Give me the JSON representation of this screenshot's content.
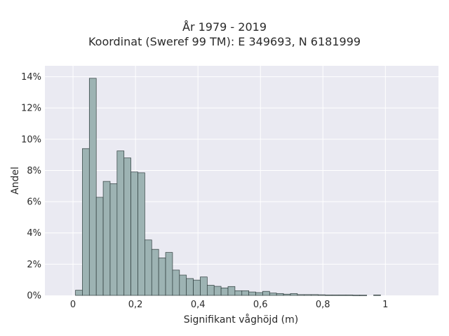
{
  "chart_data": {
    "type": "bar",
    "title": "År 1979 - 2019",
    "subtitle": "Koordinat (Sweref 99 TM): E 349693, N 6181999",
    "xlabel": "Signifikant våghöjd (m)",
    "ylabel": "Andel",
    "xlim": [
      -0.09,
      1.17
    ],
    "ylim": [
      0,
      14.7
    ],
    "x_ticks": [
      {
        "value": 0,
        "label": "0"
      },
      {
        "value": 0.2,
        "label": "0,2"
      },
      {
        "value": 0.4,
        "label": "0,4"
      },
      {
        "value": 0.6,
        "label": "0,6"
      },
      {
        "value": 0.8,
        "label": "0,8"
      },
      {
        "value": 1,
        "label": "1"
      }
    ],
    "y_ticks": [
      {
        "value": 0,
        "label": "0%"
      },
      {
        "value": 2,
        "label": "2%"
      },
      {
        "value": 4,
        "label": "4%"
      },
      {
        "value": 6,
        "label": "6%"
      },
      {
        "value": 8,
        "label": "8%"
      },
      {
        "value": 10,
        "label": "10%"
      },
      {
        "value": 12,
        "label": "12%"
      },
      {
        "value": 14,
        "label": "14%"
      }
    ],
    "bin_width": 0.0222,
    "bin_starts": [
      0.0078,
      0.03,
      0.0522,
      0.0744,
      0.0966,
      0.1188,
      0.141,
      0.1632,
      0.1854,
      0.2076,
      0.2298,
      0.252,
      0.2742,
      0.2964,
      0.3186,
      0.3408,
      0.363,
      0.3852,
      0.4074,
      0.4296,
      0.4518,
      0.474,
      0.4962,
      0.5184,
      0.5406,
      0.5628,
      0.585,
      0.6072,
      0.6294,
      0.6516,
      0.6738,
      0.696,
      0.7182,
      0.7404,
      0.7626,
      0.7848,
      0.807,
      0.8292,
      0.8514,
      0.8736,
      0.8958,
      0.918,
      0.9402,
      0.9624,
      0.9846,
      1.0068,
      1.029,
      1.0512,
      1.0734
    ],
    "values": [
      0.33,
      9.4,
      13.9,
      6.28,
      7.3,
      7.15,
      9.25,
      8.8,
      7.9,
      7.85,
      3.55,
      2.95,
      2.4,
      2.75,
      1.62,
      1.3,
      1.08,
      0.98,
      1.18,
      0.65,
      0.58,
      0.48,
      0.57,
      0.3,
      0.3,
      0.22,
      0.18,
      0.26,
      0.15,
      0.12,
      0.08,
      0.12,
      0.05,
      0.05,
      0.05,
      0.04,
      0.03,
      0.03,
      0.03,
      0.03,
      0.02,
      0.02,
      0,
      0.03,
      0,
      0,
      0,
      0,
      0
    ],
    "grid": true,
    "legend": "none",
    "colors": {
      "bar_fill": "#9db3b3",
      "bar_stroke": "#2f3d3d",
      "plot_bg": "#eaeaf2",
      "grid": "#ffffff",
      "text": "#2a2a2a"
    }
  }
}
